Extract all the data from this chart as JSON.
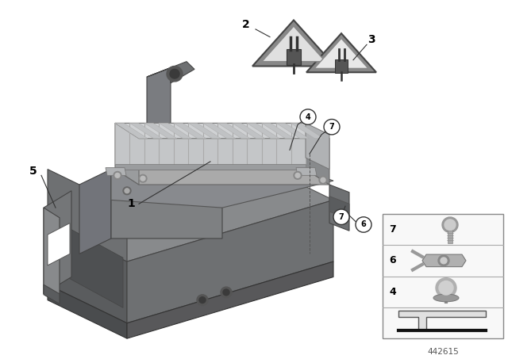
{
  "bg_color": "#ffffff",
  "diagram_id": "442615",
  "dark_gray": "#6e7072",
  "mid_gray": "#9a9c9e",
  "light_gray": "#c8cacc",
  "silver": "#d4d6d8",
  "silver_dark": "#b0b2b4",
  "very_dark": "#3a3c3e",
  "base_dark": "#5a5c5e",
  "bracket_gray": "#7a7c7e"
}
